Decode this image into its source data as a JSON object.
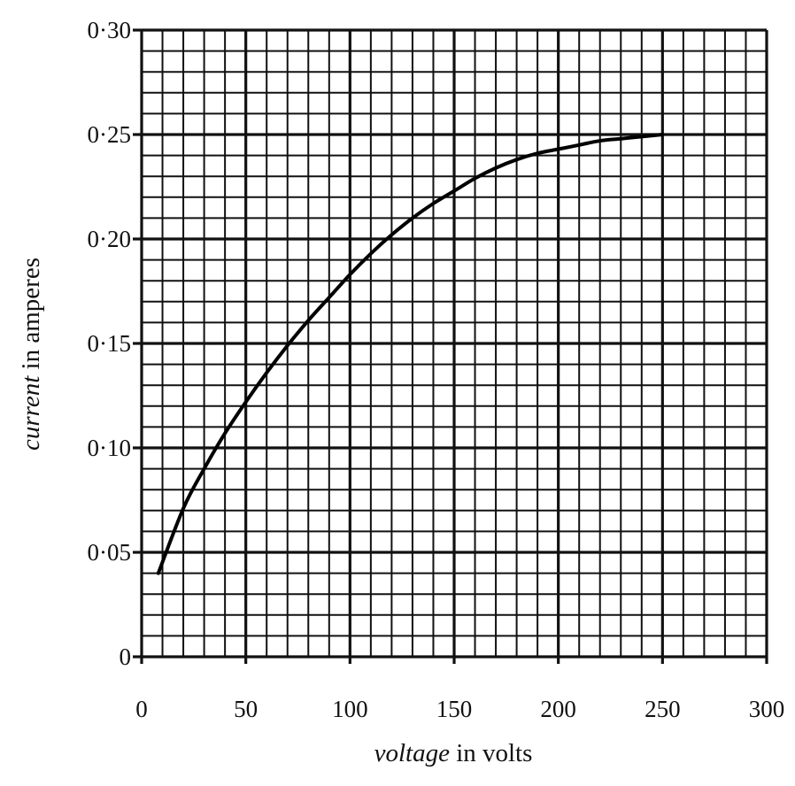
{
  "chart_data": {
    "type": "line",
    "xlabel": {
      "italic": "voltage",
      "rest": " in volts"
    },
    "ylabel": {
      "italic": "current",
      "rest": " in amperes"
    },
    "xlim": [
      0,
      300
    ],
    "ylim": [
      0,
      0.3
    ],
    "x_ticks": [
      0,
      50,
      100,
      150,
      200,
      250,
      300
    ],
    "x_tick_labels": [
      "0",
      "50",
      "100",
      "150",
      "200",
      "250",
      "300"
    ],
    "y_ticks": [
      0,
      0.05,
      0.1,
      0.15,
      0.2,
      0.25,
      0.3
    ],
    "y_tick_labels": [
      "0",
      "0·05",
      "0·10",
      "0·15",
      "0·20",
      "0·25",
      "0·30"
    ],
    "grid": true,
    "minor_divisions_per_major": 5,
    "series": [
      {
        "x": [
          8,
          20,
          30,
          40,
          50,
          60,
          70,
          80,
          90,
          100,
          110,
          120,
          130,
          140,
          150,
          160,
          170,
          180,
          190,
          200,
          210,
          220,
          230,
          240,
          250
        ],
        "y": [
          0.04,
          0.071,
          0.09,
          0.107,
          0.122,
          0.136,
          0.149,
          0.161,
          0.172,
          0.183,
          0.193,
          0.202,
          0.21,
          0.217,
          0.223,
          0.229,
          0.234,
          0.238,
          0.241,
          0.243,
          0.245,
          0.247,
          0.248,
          0.249,
          0.25
        ]
      }
    ]
  }
}
